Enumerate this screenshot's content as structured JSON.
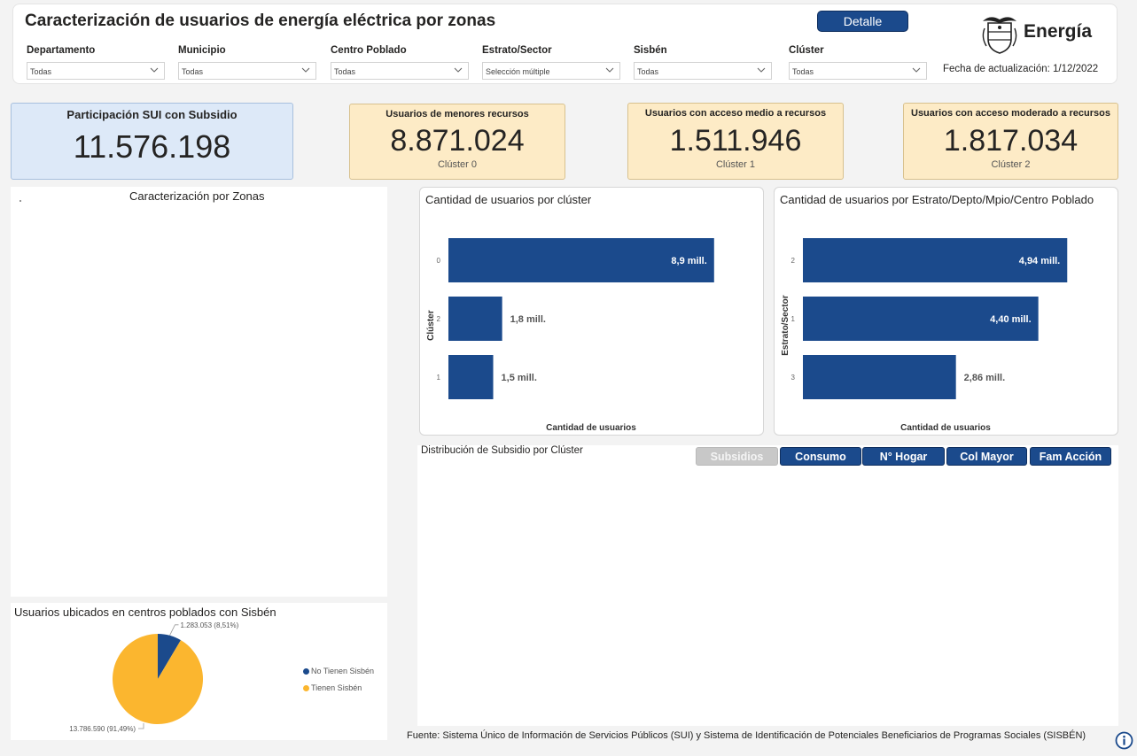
{
  "header": {
    "title": "Caracterización de usuarios de energía eléctrica por zonas",
    "detail_button": "Detalle",
    "logo_text": "Energía",
    "update_label": "Fecha de actualización: 1/12/2022"
  },
  "filters": [
    {
      "label": "Departamento",
      "value": "Todas"
    },
    {
      "label": "Municipio",
      "value": "Todas"
    },
    {
      "label": "Centro Poblado",
      "value": "Todas"
    },
    {
      "label": "Estrato/Sector",
      "value": "Selección múltiple"
    },
    {
      "label": "Sisbén",
      "value": "Todas"
    },
    {
      "label": "Clúster",
      "value": "Todas"
    }
  ],
  "kpis": {
    "main": {
      "title": "Participación SUI con Subsidio",
      "value": "11.576.198"
    },
    "cluster0": {
      "title": "Usuarios de menores recursos",
      "value": "8.871.024",
      "sub": "Clúster 0"
    },
    "cluster1": {
      "title": "Usuarios con acceso medio a recursos",
      "value": "1.511.946",
      "sub": "Clúster 1"
    },
    "cluster2": {
      "title": "Usuarios con acceso moderado a recursos",
      "value": "1.817.034",
      "sub": "Clúster 2"
    }
  },
  "map_panel": {
    "title": "Caracterización por Zonas"
  },
  "distribution_panel": {
    "title": "Distribución de Subsidio por Clúster"
  },
  "tabs": [
    {
      "label": "Subsidios",
      "active": false
    },
    {
      "label": "Consumo",
      "active": true
    },
    {
      "label": "N° Hogar",
      "active": true
    },
    {
      "label": "Col Mayor",
      "active": true
    },
    {
      "label": "Fam Acción",
      "active": true
    }
  ],
  "footer": "Fuente: Sistema Único de Información de Servicios Públicos (SUI) y Sistema de Identificación de Potenciales Beneficiarios de Programas Sociales (SISBÉN)",
  "colors": {
    "bar": "#1b4a8c",
    "pie_no": "#1b4a8c",
    "pie_yes": "#fbb62f",
    "kpi_blue": "#dde9f8",
    "kpi_yellow": "#fdebc6"
  },
  "chart_data": [
    {
      "type": "bar",
      "orientation": "horizontal",
      "title": "Cantidad de usuarios por clúster",
      "xlabel": "Cantidad de usuarios",
      "ylabel": "Clúster",
      "categories": [
        "0",
        "2",
        "1"
      ],
      "values": [
        8900000,
        1800000,
        1500000
      ],
      "data_labels": [
        "8,9 mill.",
        "1,8 mill.",
        "1,5 mill."
      ],
      "xlim": [
        0,
        9500000
      ]
    },
    {
      "type": "bar",
      "orientation": "horizontal",
      "title": "Cantidad de usuarios por Estrato/Depto/Mpio/Centro Poblado",
      "xlabel": "Cantidad de usuarios",
      "ylabel": "Estrato/Sector",
      "categories": [
        "2",
        "1",
        "3"
      ],
      "values": [
        4940000,
        4400000,
        2860000
      ],
      "data_labels": [
        "4,94 mill.",
        "4,40 mill.",
        "2,86 mill."
      ],
      "xlim": [
        0,
        5300000
      ]
    },
    {
      "type": "pie",
      "title": "Usuarios ubicados en centros poblados con Sisbén",
      "categories": [
        "No Tienen Sisbén",
        "Tienen Sisbén"
      ],
      "values": [
        1283053,
        13786590
      ],
      "data_labels": [
        "1.283.053 (8,51%)",
        "13.786.590 (91,49%)"
      ]
    }
  ]
}
